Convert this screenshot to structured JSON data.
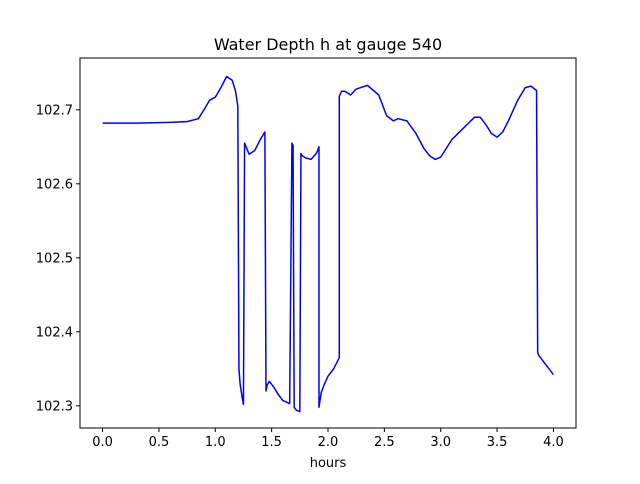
{
  "chart_data": {
    "type": "line",
    "title": "Water Depth h at gauge 540",
    "xlabel": "hours",
    "ylabel": "",
    "xlim": [
      -0.2,
      4.2
    ],
    "ylim": [
      102.27,
      102.77
    ],
    "xticks": [
      0.0,
      0.5,
      1.0,
      1.5,
      2.0,
      2.5,
      3.0,
      3.5,
      4.0
    ],
    "xtick_labels": [
      "0.0",
      "0.5",
      "1.0",
      "1.5",
      "2.0",
      "2.5",
      "3.0",
      "3.5",
      "4.0"
    ],
    "yticks": [
      102.3,
      102.4,
      102.5,
      102.6,
      102.7
    ],
    "ytick_labels": [
      "102.3",
      "102.4",
      "102.5",
      "102.6",
      "102.7"
    ],
    "grid": false,
    "series": [
      {
        "name": "",
        "color": "#0000ff",
        "x": [
          0.0,
          0.3,
          0.6,
          0.75,
          0.85,
          0.9,
          0.95,
          1.0,
          1.05,
          1.1,
          1.15,
          1.18,
          1.2,
          1.21,
          1.22,
          1.24,
          1.25,
          1.26,
          1.3,
          1.35,
          1.4,
          1.44,
          1.45,
          1.46,
          1.48,
          1.52,
          1.56,
          1.6,
          1.66,
          1.68,
          1.69,
          1.7,
          1.72,
          1.75,
          1.76,
          1.77,
          1.8,
          1.85,
          1.9,
          1.92,
          1.92,
          1.94,
          1.97,
          2.0,
          2.05,
          2.1,
          2.1,
          2.12,
          2.15,
          2.2,
          2.25,
          2.35,
          2.45,
          2.52,
          2.58,
          2.62,
          2.7,
          2.78,
          2.85,
          2.9,
          2.95,
          3.0,
          3.05,
          3.1,
          3.2,
          3.3,
          3.35,
          3.4,
          3.45,
          3.5,
          3.55,
          3.6,
          3.68,
          3.75,
          3.8,
          3.85,
          3.86,
          3.87,
          3.9,
          3.95,
          4.0
        ],
        "y": [
          102.682,
          102.682,
          102.683,
          102.684,
          102.688,
          102.7,
          102.713,
          102.717,
          102.73,
          102.745,
          102.74,
          102.725,
          102.705,
          102.35,
          102.33,
          102.31,
          102.302,
          102.655,
          102.64,
          102.645,
          102.66,
          102.67,
          102.32,
          102.328,
          102.333,
          102.325,
          102.315,
          102.307,
          102.303,
          102.655,
          102.652,
          102.298,
          102.294,
          102.292,
          102.641,
          102.638,
          102.635,
          102.633,
          102.642,
          102.65,
          102.298,
          102.318,
          102.33,
          102.34,
          102.35,
          102.365,
          102.718,
          102.725,
          102.725,
          102.72,
          102.728,
          102.733,
          102.72,
          102.692,
          102.685,
          102.688,
          102.685,
          102.668,
          102.648,
          102.638,
          102.633,
          102.636,
          102.648,
          102.66,
          102.675,
          102.69,
          102.69,
          102.68,
          102.668,
          102.663,
          102.67,
          102.685,
          102.712,
          102.73,
          102.732,
          102.726,
          102.372,
          102.368,
          102.362,
          102.352,
          102.342
        ]
      }
    ]
  }
}
